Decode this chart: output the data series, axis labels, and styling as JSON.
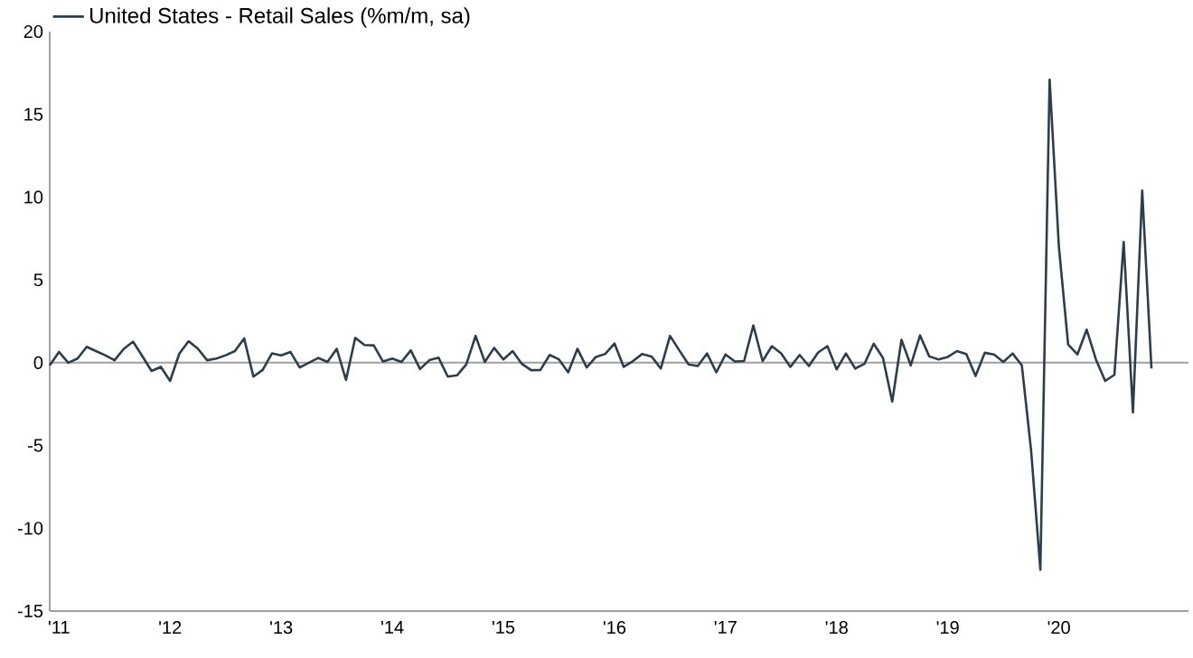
{
  "chart_data": {
    "type": "line",
    "x": [
      "2010-12",
      "2011-01",
      "2011-02",
      "2011-03",
      "2011-04",
      "2011-05",
      "2011-06",
      "2011-07",
      "2011-08",
      "2011-09",
      "2011-10",
      "2011-11",
      "2011-12",
      "2012-01",
      "2012-02",
      "2012-03",
      "2012-04",
      "2012-05",
      "2012-06",
      "2012-07",
      "2012-08",
      "2012-09",
      "2012-10",
      "2012-11",
      "2012-12",
      "2013-01",
      "2013-02",
      "2013-03",
      "2013-04",
      "2013-05",
      "2013-06",
      "2013-07",
      "2013-08",
      "2013-09",
      "2013-10",
      "2013-11",
      "2013-12",
      "2014-01",
      "2014-02",
      "2014-03",
      "2014-04",
      "2014-05",
      "2014-06",
      "2014-07",
      "2014-08",
      "2014-09",
      "2014-10",
      "2014-11",
      "2014-12",
      "2015-01",
      "2015-02",
      "2015-03",
      "2015-04",
      "2015-05",
      "2015-06",
      "2015-07",
      "2015-08",
      "2015-09",
      "2015-10",
      "2015-11",
      "2015-12",
      "2016-01",
      "2016-02",
      "2016-03",
      "2016-04",
      "2016-05",
      "2016-06",
      "2016-07",
      "2016-08",
      "2016-09",
      "2016-10",
      "2016-11",
      "2016-12",
      "2017-01",
      "2017-02",
      "2017-03",
      "2017-04",
      "2017-05",
      "2017-06",
      "2017-07",
      "2017-08",
      "2017-09",
      "2017-10",
      "2017-11",
      "2017-12",
      "2018-01",
      "2018-02",
      "2018-03",
      "2018-04",
      "2018-05",
      "2018-06",
      "2018-07",
      "2018-08",
      "2018-09",
      "2018-10",
      "2018-11",
      "2018-12",
      "2019-01",
      "2019-02",
      "2019-03",
      "2019-04",
      "2019-05",
      "2019-06",
      "2019-07",
      "2019-08",
      "2019-09",
      "2019-10",
      "2019-11",
      "2019-12",
      "2020-01",
      "2020-02",
      "2020-03",
      "2020-04",
      "2020-05",
      "2020-06",
      "2020-07",
      "2020-08",
      "2020-09",
      "2020-10",
      "2020-11"
    ],
    "series": [
      {
        "name": "United States - Retail Sales (%m/m, sa)",
        "color": "#2c3e4c",
        "values": [
          -0.16,
          0.65,
          0,
          0.25,
          0.96,
          0.7,
          0.45,
          0.15,
          0.84,
          1.27,
          0.4,
          -0.5,
          -0.25,
          -1.1,
          0.55,
          1.3,
          0.85,
          0.15,
          0.25,
          0.45,
          0.7,
          1.47,
          -0.84,
          -0.44,
          0.56,
          0.44,
          0.65,
          -0.29,
          0,
          0.29,
          0.05,
          0.84,
          -1.04,
          1.5,
          1.07,
          1.05,
          0.07,
          0.25,
          0.05,
          0.75,
          -0.38,
          0.15,
          0.3,
          -0.84,
          -0.76,
          -0.1,
          1.62,
          0.05,
          0.9,
          0.2,
          0.7,
          -0.07,
          -0.45,
          -0.44,
          0.47,
          0.2,
          -0.58,
          0.84,
          -0.29,
          0.35,
          0.53,
          1.16,
          -0.25,
          0.1,
          0.53,
          0.38,
          -0.35,
          1.62,
          0.75,
          -0.1,
          -0.2,
          0.56,
          -0.58,
          0.5,
          0.07,
          0.1,
          2.25,
          0.1,
          1.0,
          0.56,
          -0.25,
          0.47,
          -0.2,
          0.62,
          1.0,
          -0.4,
          0.56,
          -0.35,
          -0.07,
          1.15,
          0.29,
          -2.35,
          1.38,
          -0.16,
          1.65,
          0.38,
          0.2,
          0.35,
          0.7,
          0.53,
          -0.8,
          0.6,
          0.5,
          0.05,
          0.56,
          -0.16,
          -5.3,
          -12.5,
          17.1,
          7.0,
          1.1,
          0.5,
          2.0,
          0.2,
          -1.1,
          -0.73,
          7.3,
          -3.0,
          10.4,
          -0.35
        ]
      }
    ],
    "xlim": [
      "2010-12",
      "2021-03"
    ],
    "xticks": [
      {
        "value": "2011-01",
        "label": "'11"
      },
      {
        "value": "2012-01",
        "label": "'12"
      },
      {
        "value": "2013-01",
        "label": "'13"
      },
      {
        "value": "2014-01",
        "label": "'14"
      },
      {
        "value": "2015-01",
        "label": "'15"
      },
      {
        "value": "2016-01",
        "label": "'16"
      },
      {
        "value": "2017-01",
        "label": "'17"
      },
      {
        "value": "2018-01",
        "label": "'18"
      },
      {
        "value": "2019-01",
        "label": "'19"
      },
      {
        "value": "2020-01",
        "label": "'20"
      }
    ],
    "ylim": [
      -15,
      20
    ],
    "yticks": [
      -15,
      -10,
      -5,
      0,
      5,
      10,
      15,
      20
    ],
    "ref_lines": [
      {
        "axis": "y",
        "value": 0,
        "color": "#a0a0a0"
      }
    ],
    "legend": "top left",
    "grid": false,
    "marker": "none",
    "line_style": "solid"
  }
}
